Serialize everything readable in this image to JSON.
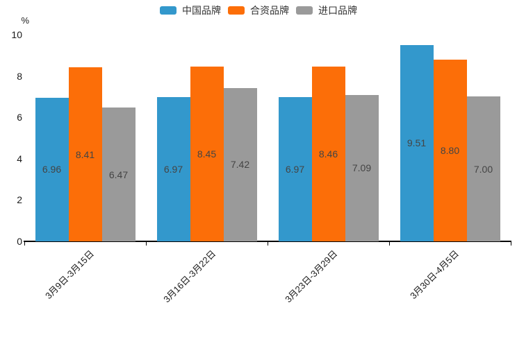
{
  "chart_data": {
    "type": "bar",
    "title": "",
    "unit": "%",
    "categories": [
      "3月9日-3月15日",
      "3月16日-3月22日",
      "3月23日-3月29日",
      "3月30日-4月5日"
    ],
    "series": [
      {
        "name": "中国品牌",
        "color": "#3398CC",
        "values": [
          6.96,
          6.97,
          6.97,
          9.51
        ],
        "labels": [
          "6.96",
          "6.97",
          "6.97",
          "9.51"
        ]
      },
      {
        "name": "合资品牌",
        "color": "#FC6E08",
        "values": [
          8.41,
          8.45,
          8.46,
          8.8
        ],
        "labels": [
          "8.41",
          "8.45",
          "8.46",
          "8.80"
        ]
      },
      {
        "name": "进口品牌",
        "color": "#9A9A9A",
        "values": [
          6.47,
          7.42,
          7.09,
          7.0
        ],
        "labels": [
          "6.47",
          "7.42",
          "7.09",
          "7.00"
        ]
      }
    ],
    "ylim": [
      0,
      10
    ],
    "yticks": [
      0,
      2,
      4,
      6,
      8,
      10
    ],
    "ytick_labels": [
      "0",
      "2",
      "4",
      "6",
      "8",
      "10"
    ],
    "grid": false,
    "legend_position": "top",
    "value_label_position": "inside-center",
    "axis_color": "#000000",
    "tick_label_color": "#1a1a1a",
    "value_label_color": "#444444"
  }
}
